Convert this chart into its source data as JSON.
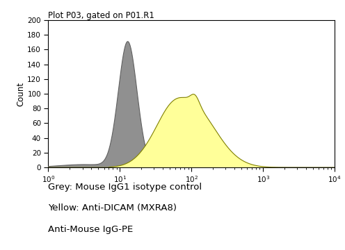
{
  "title": "Plot P03, gated on P01.R1",
  "ylabel": "Count",
  "xlabel": "",
  "xlim": [
    1,
    10000
  ],
  "ylim": [
    0,
    200
  ],
  "yticks": [
    0,
    20,
    40,
    60,
    80,
    100,
    120,
    140,
    160,
    180,
    200
  ],
  "background_color": "#ffffff",
  "plot_bg_color": "#ffffff",
  "grey_fill_color": "#909090",
  "grey_edge_color": "#606060",
  "yellow_fill_color": "#ffff99",
  "yellow_edge_color": "#808000",
  "legend_lines": [
    "Grey: Mouse IgG1 isotype control",
    "Yellow: Anti-DICAM (MXRA8)",
    "Anti-Mouse IgG-PE"
  ],
  "title_fontsize": 8.5,
  "axis_fontsize": 8.5,
  "tick_fontsize": 7.5,
  "legend_fontsize": 9.5
}
